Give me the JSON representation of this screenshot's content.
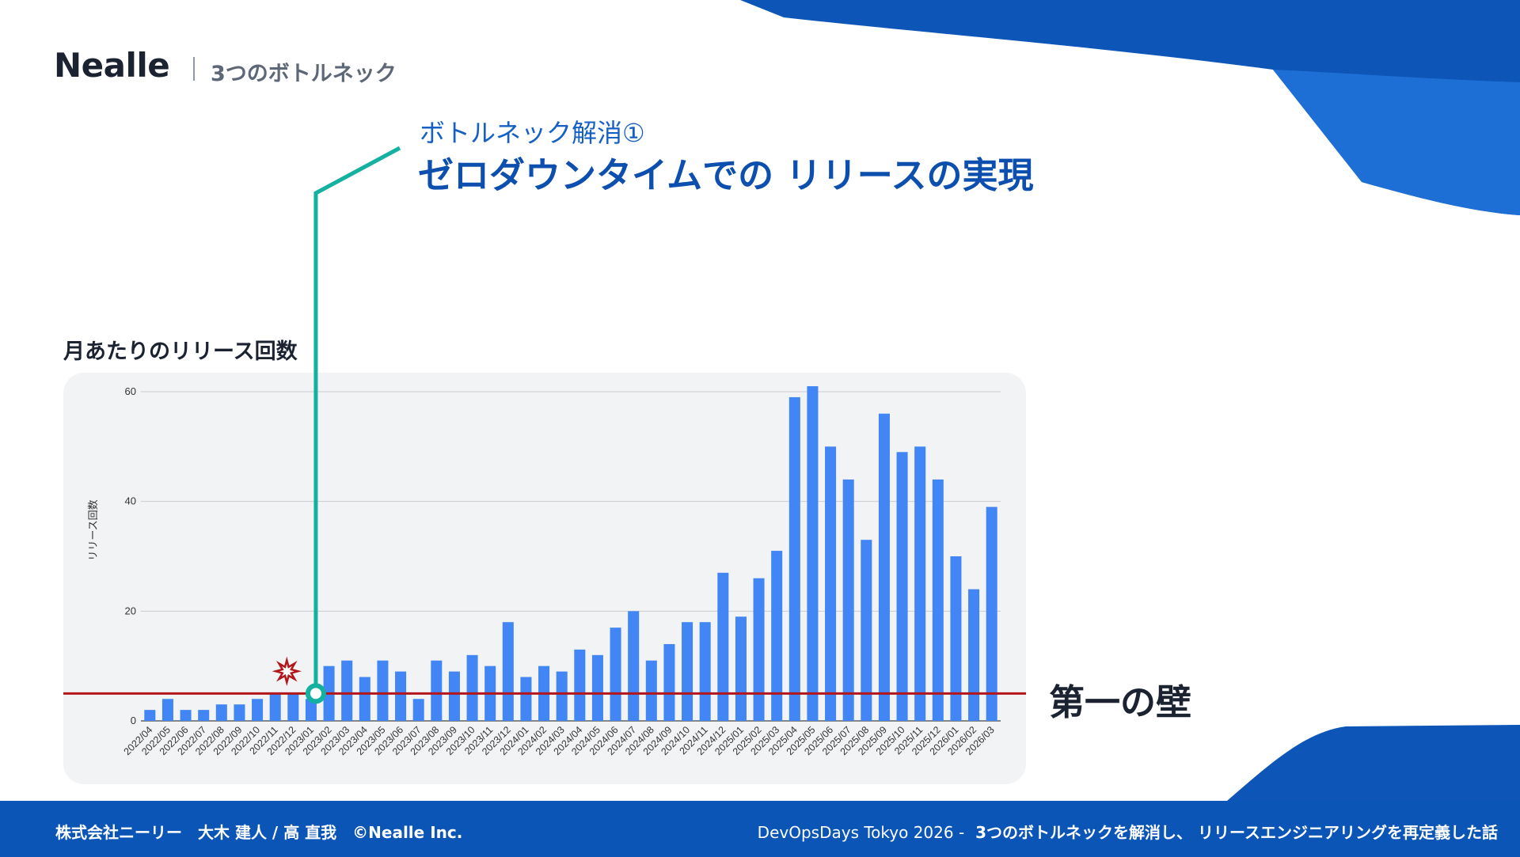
{
  "header": {
    "logo": "Nealle",
    "section": "3つのボトルネック"
  },
  "callout": {
    "subtitle": "ボトルネック解消①",
    "title": "ゼロダウンタイムでの リリースの実現"
  },
  "chart_title": "月あたりのリリース回数",
  "wall_label": "第一の壁",
  "footer": {
    "left": "株式会社ニーリー　大木 建人 / 高 直我　©Nealle Inc.",
    "event": "DevOpsDays Tokyo 2026 -",
    "talk": "3つのボトルネックを解消し、 リリースエンジニアリングを再定義した話"
  },
  "colors": {
    "brand": "#0b55b6",
    "bar": "#4285f4",
    "threshold": "#b3161b",
    "callout_line": "#14b1a1"
  },
  "icons": {
    "incident_marker": "explosion-icon",
    "milestone_marker": "ring-icon"
  },
  "chart_data": {
    "type": "bar",
    "ylabel": "リリース回数",
    "ylim": [
      0,
      60
    ],
    "yticks": [
      0,
      20,
      40,
      60
    ],
    "grid": true,
    "categories": [
      "2022/04",
      "2022/05",
      "2022/06",
      "2022/07",
      "2022/08",
      "2022/09",
      "2022/10",
      "2022/11",
      "2022/12",
      "2023/01",
      "2023/02",
      "2023/03",
      "2023/04",
      "2023/05",
      "2023/06",
      "2023/07",
      "2023/08",
      "2023/09",
      "2023/10",
      "2023/11",
      "2023/12",
      "2024/01",
      "2024/02",
      "2024/03",
      "2024/04",
      "2024/05",
      "2024/06",
      "2024/07",
      "2024/08",
      "2024/09",
      "2024/10",
      "2024/11",
      "2024/12",
      "2025/01",
      "2025/02",
      "2025/03",
      "2025/04",
      "2025/05",
      "2025/06",
      "2025/07",
      "2025/08",
      "2025/09",
      "2025/10",
      "2025/11",
      "2025/12",
      "2026/01",
      "2026/02",
      "2026/03"
    ],
    "values": [
      2,
      4,
      2,
      2,
      3,
      3,
      4,
      5,
      5,
      4,
      10,
      11,
      8,
      11,
      9,
      4,
      11,
      9,
      12,
      10,
      18,
      8,
      10,
      9,
      13,
      12,
      17,
      20,
      11,
      14,
      18,
      18,
      27,
      19,
      26,
      31,
      59,
      61,
      50,
      44,
      33,
      56,
      49,
      50,
      44,
      30,
      24,
      39
    ],
    "threshold": 5,
    "incident_category": "2022/12",
    "milestone_category": "2023/01"
  }
}
